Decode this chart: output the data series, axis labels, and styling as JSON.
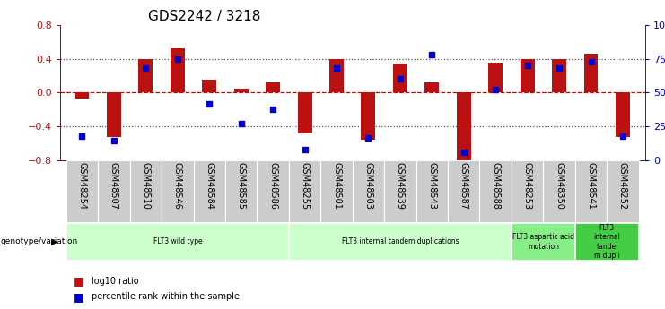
{
  "title": "GDS2242 / 3218",
  "samples": [
    "GSM48254",
    "GSM48507",
    "GSM48510",
    "GSM48546",
    "GSM48584",
    "GSM48585",
    "GSM48586",
    "GSM48255",
    "GSM48501",
    "GSM48503",
    "GSM48539",
    "GSM48543",
    "GSM48587",
    "GSM48588",
    "GSM48253",
    "GSM48350",
    "GSM48541",
    "GSM48252"
  ],
  "log10_ratio": [
    -0.07,
    -0.52,
    0.39,
    0.52,
    0.15,
    0.05,
    0.12,
    -0.48,
    0.4,
    -0.55,
    0.34,
    0.12,
    -0.8,
    0.35,
    0.4,
    0.4,
    0.46,
    -0.52
  ],
  "percentile_rank": [
    18,
    15,
    68,
    75,
    42,
    27,
    38,
    8,
    68,
    17,
    60,
    78,
    6,
    52,
    70,
    68,
    73,
    18
  ],
  "ylim_left": [
    -0.8,
    0.8
  ],
  "ylim_right": [
    0,
    100
  ],
  "bar_color": "#bb1111",
  "scatter_color": "#0000cc",
  "dotted_color": "#555555",
  "red_dashed_color": "#cc0000",
  "xtick_bg_color": "#cccccc",
  "genotype_groups": [
    {
      "label": "FLT3 wild type",
      "start": 0,
      "end": 6,
      "color": "#ccffcc"
    },
    {
      "label": "FLT3 internal tandem duplications",
      "start": 7,
      "end": 13,
      "color": "#ccffcc"
    },
    {
      "label": "FLT3 aspartic acid\nmutation",
      "start": 14,
      "end": 15,
      "color": "#88ee88"
    },
    {
      "label": "FLT3\ninternal\ntande\nm dupli",
      "start": 16,
      "end": 17,
      "color": "#44cc44"
    }
  ],
  "tick_fontsize": 7.0,
  "title_fontsize": 11,
  "genotype_label": "genotype/variation"
}
